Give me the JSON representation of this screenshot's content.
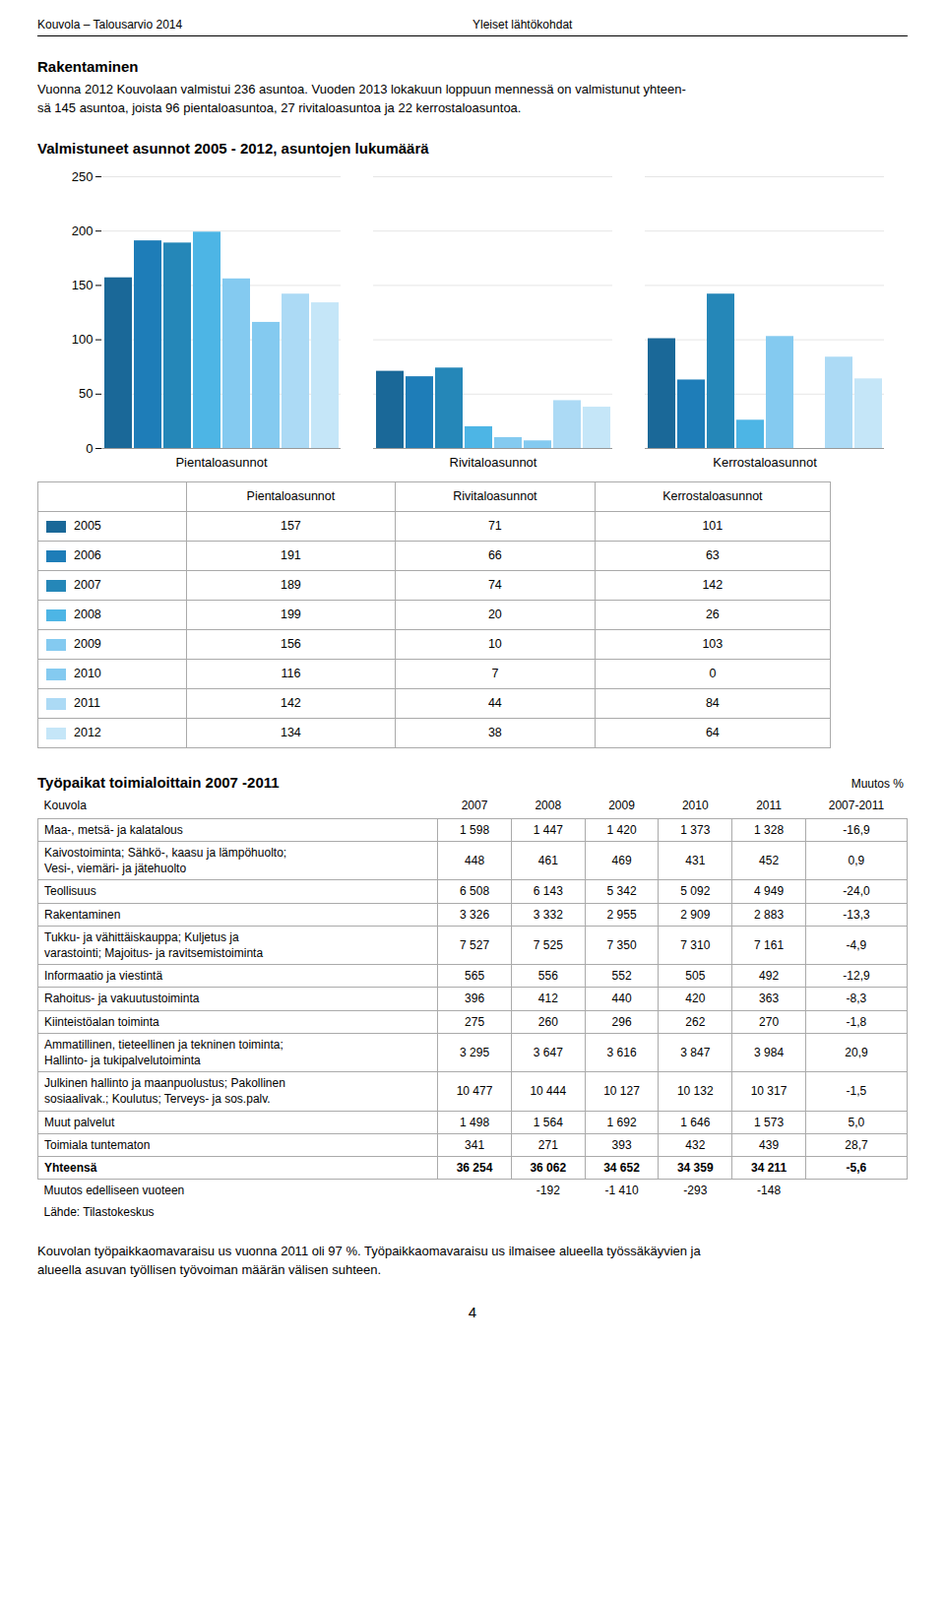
{
  "page_header": [
    "Kouvola – Talousarvio 2014",
    "Yleiset lähtökohdat"
  ],
  "section_title": "Rakentaminen",
  "section_text": [
    "Vuonna 2012 Kouvolaan valmistui 236 asuntoa. Vuoden 2013 lokakuun loppuun mennessä on valmistunut yhteen-",
    "sä 145 asuntoa, joista 96 pientaloasuntoa, 27 rivitaloasuntoa ja 22 kerrostaloasuntoa."
  ],
  "chart_data": {
    "type": "bar",
    "title": "Valmistuneet asunnot 2005 - 2012, asuntojen lukumäärä",
    "categories": [
      "Pientaloasunnot",
      "Rivitaloasunnot",
      "Kerrostaloasunnot"
    ],
    "series": [
      {
        "name": "2005",
        "color": "#1a6898",
        "values": [
          157,
          71,
          101
        ]
      },
      {
        "name": "2006",
        "color": "#1e7db8",
        "values": [
          191,
          66,
          63
        ]
      },
      {
        "name": "2007",
        "color": "#2587b8",
        "values": [
          189,
          74,
          142
        ]
      },
      {
        "name": "2008",
        "color": "#4db5e5",
        "values": [
          199,
          20,
          26
        ]
      },
      {
        "name": "2009",
        "color": "#84caf0",
        "values": [
          156,
          10,
          103
        ]
      },
      {
        "name": "2010",
        "color": "#84caf0",
        "values": [
          116,
          7,
          0
        ]
      },
      {
        "name": "2011",
        "color": "#acdaf5",
        "values": [
          142,
          44,
          84
        ]
      },
      {
        "name": "2012",
        "color": "#c5e6f8",
        "values": [
          134,
          38,
          64
        ]
      }
    ],
    "ylim": [
      0,
      250
    ],
    "yticks": [
      0,
      50,
      100,
      150,
      200,
      250
    ],
    "grid": true
  },
  "table": {
    "title": "Työpaikat toimialoittain 2007 -2011",
    "note": "Muutos %",
    "columns": [
      "Kouvola",
      "2007",
      "2008",
      "2009",
      "2010",
      "2011",
      "2007-2011"
    ],
    "rows": [
      [
        "Maa-, metsä- ja kalatalous",
        "1 598",
        "1 447",
        "1 420",
        "1 373",
        "1 328",
        "-16,9"
      ],
      [
        "Kaivostoiminta; Sähkö-, kaasu ja lämpöhuolto;\nVesi-, viemäri- ja jätehuolto",
        "448",
        "461",
        "469",
        "431",
        "452",
        "0,9"
      ],
      [
        "Teollisuus",
        "6 508",
        "6 143",
        "5 342",
        "5 092",
        "4 949",
        "-24,0"
      ],
      [
        "Rakentaminen",
        "3 326",
        "3 332",
        "2 955",
        "2 909",
        "2 883",
        "-13,3"
      ],
      [
        "Tukku- ja vähittäiskauppa; Kuljetus ja\nvarastointi; Majoitus- ja ravitsemistoiminta",
        "7 527",
        "7 525",
        "7 350",
        "7 310",
        "7 161",
        "-4,9"
      ],
      [
        "Informaatio ja viestintä",
        "565",
        "556",
        "552",
        "505",
        "492",
        "-12,9"
      ],
      [
        "Rahoitus- ja vakuutustoiminta",
        "396",
        "412",
        "440",
        "420",
        "363",
        "-8,3"
      ],
      [
        "Kiinteistöalan toiminta",
        "275",
        "260",
        "296",
        "262",
        "270",
        "-1,8"
      ],
      [
        "Ammatillinen, tieteellinen ja tekninen toiminta;\nHallinto- ja tukipalvelutoiminta",
        "3 295",
        "3 647",
        "3 616",
        "3 847",
        "3 984",
        "20,9"
      ],
      [
        "Julkinen hallinto ja maanpuolustus; Pakollinen\nsosiaalivak.; Koulutus; Terveys- ja sos.palv.",
        "10 477",
        "10 444",
        "10 127",
        "10 132",
        "10 317",
        "-1,5"
      ],
      [
        "Muut palvelut",
        "1 498",
        "1 564",
        "1 692",
        "1 646",
        "1 573",
        "5,0"
      ],
      [
        "Toimiala tuntematon",
        "341",
        "271",
        "393",
        "432",
        "439",
        "28,7"
      ]
    ],
    "total": [
      "Yhteensä",
      "36 254",
      "36 062",
      "34 652",
      "34 359",
      "34 211",
      "-5,6"
    ],
    "change_row": [
      "Muutos edelliseen vuoteen",
      null,
      "-192",
      "-1 410",
      "-293",
      "-148",
      null
    ],
    "source": "Lähde: Tilastokeskus"
  },
  "footer_text": [
    "Kouvolan työpaikkaomavaraisu us vuonna 2011 oli 97 %. Työpaikkaomavaraisu us ilmaisee alueella työssäkäyvien ja",
    "alueella asuvan työllisen työvoiman määrän välisen suhteen."
  ],
  "page_number": "4"
}
